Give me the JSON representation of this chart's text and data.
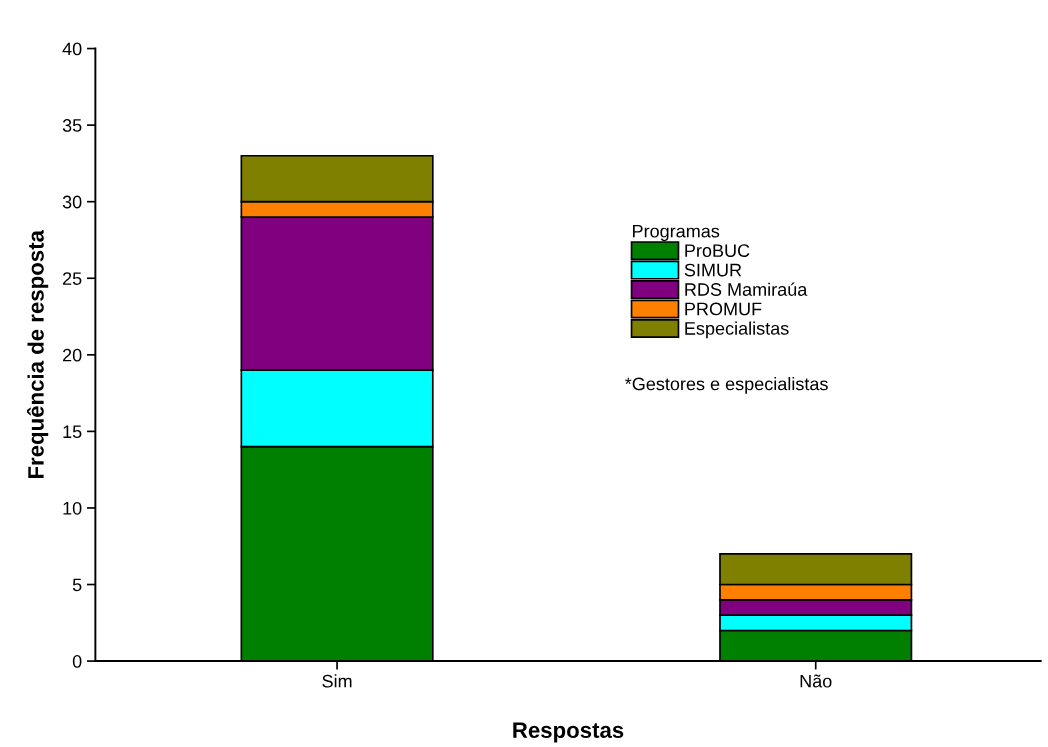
{
  "chart_data": {
    "type": "bar",
    "stacked": true,
    "xlabel": "Respostas",
    "ylabel": "Frequência de resposta",
    "categories": [
      "Sim",
      "Não"
    ],
    "series": [
      {
        "name": "ProBUC",
        "color": "#008000",
        "values": [
          14,
          2
        ]
      },
      {
        "name": "SIMUR",
        "color": "#00ffff",
        "values": [
          5,
          1
        ]
      },
      {
        "name": "RDS Mamiraúa",
        "color": "#800080",
        "values": [
          10,
          1
        ]
      },
      {
        "name": "PROMUF",
        "color": "#ff8000",
        "values": [
          1,
          1
        ]
      },
      {
        "name": "Especialistas",
        "color": "#808000",
        "values": [
          3,
          2
        ]
      }
    ],
    "legend": "right",
    "legend_title": "Programas",
    "annotations": [
      "*Gestores e especialistas"
    ],
    "ylim": [
      0,
      40
    ],
    "yticks": [
      0,
      5,
      10,
      15,
      20,
      25,
      30,
      35,
      40
    ],
    "grid": false
  }
}
